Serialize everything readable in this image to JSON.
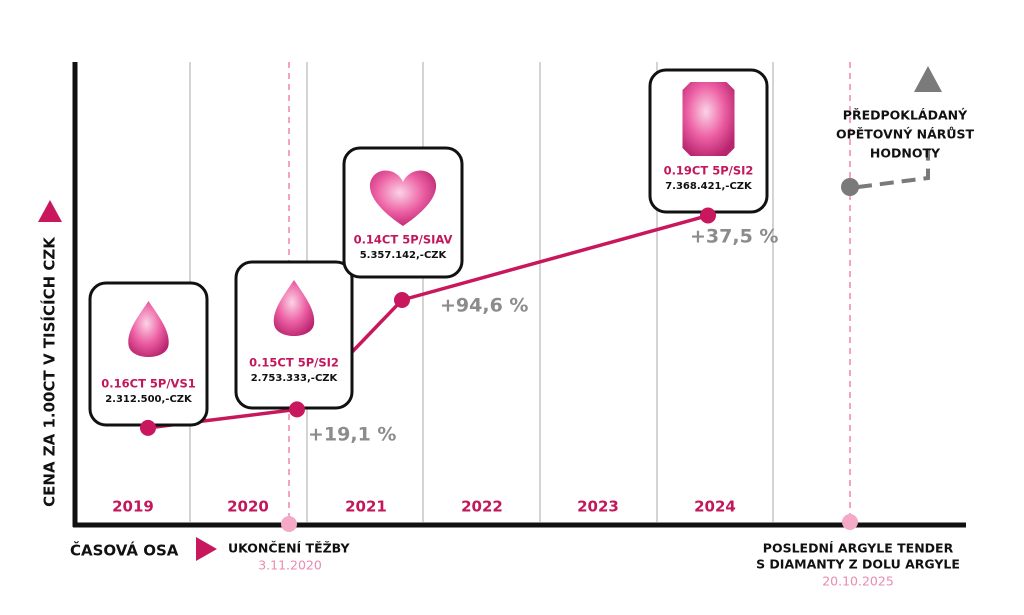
{
  "chart_data": {
    "type": "line",
    "y_axis_label": "CENA ZA 1.00CT V TISÍCÍCH CZK",
    "x_axis_label": "ČASOVÁ OSA",
    "years": [
      "2019",
      "2020",
      "2021",
      "2022",
      "2023",
      "2024"
    ],
    "ylim": [
      0,
      10000000
    ],
    "color": "#c8175d",
    "diamonds": [
      {
        "label": "0.16CT 5P/VS1",
        "value": 2312500,
        "value_label": "2.312.500,-CZK"
      },
      {
        "label": "0.15CT 5P/SI2",
        "value": 2753333,
        "value_label": "2.753.333,-CZK"
      },
      {
        "label": "0.14CT 5P/SIAV",
        "value": 5357142,
        "value_label": "5.357.142,-CZK"
      },
      {
        "label": "0.19CT 5P/SI2",
        "value": 7368421,
        "value_label": "7.368.421,-CZK"
      }
    ],
    "changes": [
      "+19,1 %",
      "+94,6 %",
      "+37,5 %"
    ],
    "projection": [
      "PŘEDPOKLÁDANÝ",
      "OPĚTOVNÝ NÁRŮST",
      "HODNOTY"
    ],
    "events": [
      {
        "lines": [
          "UKONČENÍ TĚŽBY"
        ],
        "date": "3.11.2020"
      },
      {
        "lines": [
          "POSLEDNÍ ARGYLE TENDER",
          "S DIAMANTY Z DOLU ARGYLE"
        ],
        "date": "20.10.2025"
      }
    ]
  }
}
